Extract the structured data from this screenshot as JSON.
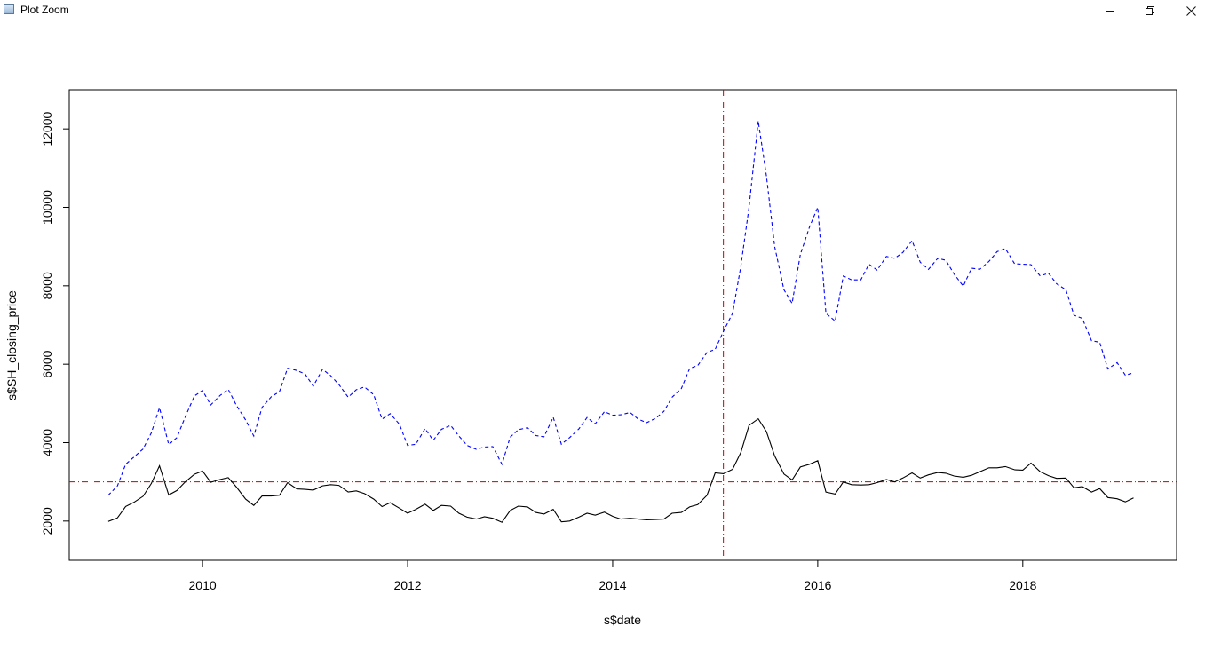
{
  "window": {
    "title": "Plot Zoom"
  },
  "chart_data": {
    "type": "line",
    "xlabel": "s$date",
    "ylabel": "s$SH_closing_price",
    "xlim": [
      2008.7,
      2019.5
    ],
    "ylim": [
      1000,
      13000
    ],
    "xticks": [
      2010,
      2012,
      2014,
      2016,
      2018
    ],
    "yticks": [
      2000,
      4000,
      6000,
      8000,
      10000,
      12000
    ],
    "xtick_labels": [
      "2010",
      "2012",
      "2014",
      "2016",
      "2018"
    ],
    "ytick_labels": [
      "2000",
      "4000",
      "6000",
      "8000",
      "10000",
      "12000"
    ],
    "grid": false,
    "series": [
      {
        "color": "#000000",
        "style": "solid",
        "x": [
          2009.08,
          2009.17,
          2009.25,
          2009.33,
          2009.42,
          2009.5,
          2009.58,
          2009.67,
          2009.75,
          2009.83,
          2009.92,
          2010.0,
          2010.08,
          2010.17,
          2010.25,
          2010.33,
          2010.42,
          2010.5,
          2010.58,
          2010.67,
          2010.75,
          2010.83,
          2010.92,
          2011.0,
          2011.08,
          2011.17,
          2011.25,
          2011.33,
          2011.42,
          2011.5,
          2011.58,
          2011.67,
          2011.75,
          2011.83,
          2011.92,
          2012.0,
          2012.08,
          2012.17,
          2012.25,
          2012.33,
          2012.42,
          2012.5,
          2012.58,
          2012.67,
          2012.75,
          2012.83,
          2012.92,
          2013.0,
          2013.08,
          2013.17,
          2013.25,
          2013.33,
          2013.42,
          2013.5,
          2013.58,
          2013.67,
          2013.75,
          2013.83,
          2013.92,
          2014.0,
          2014.08,
          2014.17,
          2014.25,
          2014.33,
          2014.42,
          2014.5,
          2014.58,
          2014.67,
          2014.75,
          2014.83,
          2014.92,
          2015.0,
          2015.08,
          2015.17,
          2015.25,
          2015.33,
          2015.42,
          2015.5,
          2015.58,
          2015.67,
          2015.75,
          2015.83,
          2015.92,
          2016.0,
          2016.08,
          2016.17,
          2016.25,
          2016.33,
          2016.42,
          2016.5,
          2016.58,
          2016.67,
          2016.75,
          2016.83,
          2016.92,
          2017.0,
          2017.08,
          2017.17,
          2017.25,
          2017.33,
          2017.42,
          2017.5,
          2017.58,
          2017.67,
          2017.75,
          2017.83,
          2017.92,
          2018.0,
          2018.08,
          2018.17,
          2018.25,
          2018.33,
          2018.42,
          2018.5,
          2018.58,
          2018.67,
          2018.75,
          2018.83,
          2018.92,
          2019.0,
          2019.08
        ],
        "y": [
          1990,
          2082,
          2373,
          2477,
          2632,
          2959,
          3412,
          2667,
          2780,
          2996,
          3195,
          3277,
          2990,
          3060,
          3110,
          2870,
          2560,
          2400,
          2640,
          2640,
          2660,
          2980,
          2820,
          2810,
          2790,
          2900,
          2930,
          2910,
          2740,
          2770,
          2700,
          2560,
          2370,
          2470,
          2330,
          2200,
          2300,
          2430,
          2270,
          2400,
          2380,
          2200,
          2100,
          2050,
          2110,
          2070,
          1970,
          2270,
          2380,
          2360,
          2220,
          2180,
          2300,
          1980,
          2000,
          2100,
          2200,
          2150,
          2230,
          2120,
          2050,
          2070,
          2050,
          2030,
          2040,
          2050,
          2200,
          2220,
          2360,
          2420,
          2660,
          3230,
          3210,
          3320,
          3750,
          4440,
          4610,
          4280,
          3660,
          3200,
          3050,
          3380,
          3450,
          3540,
          2740,
          2690,
          3000,
          2930,
          2920,
          2930,
          2980,
          3060,
          3000,
          3100,
          3230,
          3100,
          3180,
          3240,
          3220,
          3150,
          3120,
          3170,
          3260,
          3360,
          3360,
          3390,
          3310,
          3300,
          3480,
          3260,
          3160,
          3090,
          3100,
          2850,
          2880,
          2740,
          2830,
          2600,
          2570,
          2490,
          2590
        ]
      },
      {
        "color": "#0000ff",
        "style": "dashed",
        "x": [
          2009.08,
          2009.17,
          2009.25,
          2009.33,
          2009.42,
          2009.5,
          2009.58,
          2009.67,
          2009.75,
          2009.83,
          2009.92,
          2010.0,
          2010.08,
          2010.17,
          2010.25,
          2010.33,
          2010.42,
          2010.5,
          2010.58,
          2010.67,
          2010.75,
          2010.83,
          2010.92,
          2011.0,
          2011.08,
          2011.17,
          2011.25,
          2011.33,
          2011.42,
          2011.5,
          2011.58,
          2011.67,
          2011.75,
          2011.83,
          2011.92,
          2012.0,
          2012.08,
          2012.17,
          2012.25,
          2012.33,
          2012.42,
          2012.5,
          2012.58,
          2012.67,
          2012.75,
          2012.83,
          2012.92,
          2013.0,
          2013.08,
          2013.17,
          2013.25,
          2013.33,
          2013.42,
          2013.5,
          2013.58,
          2013.67,
          2013.75,
          2013.83,
          2013.92,
          2014.0,
          2014.08,
          2014.17,
          2014.25,
          2014.33,
          2014.42,
          2014.5,
          2014.58,
          2014.67,
          2014.75,
          2014.83,
          2014.92,
          2015.0,
          2015.08,
          2015.17,
          2015.25,
          2015.33,
          2015.42,
          2015.5,
          2015.58,
          2015.67,
          2015.75,
          2015.83,
          2015.92,
          2016.0,
          2016.08,
          2016.17,
          2016.25,
          2016.33,
          2016.42,
          2016.5,
          2016.58,
          2016.67,
          2016.75,
          2016.83,
          2016.92,
          2017.0,
          2017.08,
          2017.17,
          2017.25,
          2017.33,
          2017.42,
          2017.5,
          2017.58,
          2017.67,
          2017.75,
          2017.83,
          2017.92,
          2018.0,
          2018.08,
          2018.17,
          2018.25,
          2018.33,
          2018.42,
          2018.5,
          2018.58,
          2018.67,
          2018.75,
          2018.83,
          2018.92,
          2019.0,
          2019.08
        ],
        "y": [
          2660,
          2900,
          3450,
          3630,
          3840,
          4250,
          4890,
          3950,
          4130,
          4650,
          5190,
          5330,
          4960,
          5200,
          5360,
          4950,
          4580,
          4170,
          4900,
          5170,
          5300,
          5900,
          5840,
          5750,
          5440,
          5870,
          5710,
          5480,
          5160,
          5350,
          5420,
          5220,
          4600,
          4740,
          4470,
          3930,
          3960,
          4360,
          4060,
          4340,
          4440,
          4170,
          3930,
          3830,
          3890,
          3900,
          3450,
          4140,
          4330,
          4380,
          4180,
          4150,
          4650,
          3960,
          4130,
          4350,
          4640,
          4480,
          4790,
          4700,
          4710,
          4770,
          4600,
          4510,
          4620,
          4800,
          5160,
          5380,
          5890,
          5970,
          6300,
          6380,
          6840,
          7300,
          8500,
          10000,
          12200,
          10800,
          9000,
          7900,
          7550,
          8800,
          9500,
          10000,
          7300,
          7100,
          8250,
          8150,
          8150,
          8550,
          8400,
          8750,
          8700,
          8850,
          9150,
          8600,
          8420,
          8700,
          8650,
          8300,
          7990,
          8450,
          8420,
          8620,
          8870,
          8950,
          8560,
          8550,
          8540,
          8250,
          8320,
          8050,
          7900,
          7250,
          7170,
          6600,
          6560,
          5880,
          6040,
          5720,
          5780
        ]
      }
    ],
    "reference_lines": [
      {
        "orientation": "vertical",
        "value": 2015.08,
        "color": "#cc0000",
        "style": "dashdot"
      },
      {
        "orientation": "horizontal",
        "value": 3000,
        "color": "#cc0000",
        "style": "dashdot"
      }
    ]
  }
}
